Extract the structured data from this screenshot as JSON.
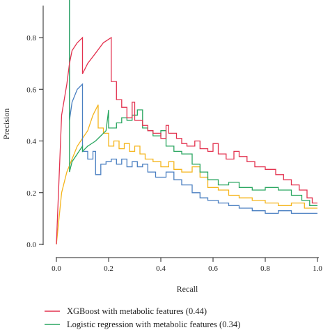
{
  "chart_data": {
    "type": "line",
    "xlabel": "Recall",
    "ylabel": "Precision",
    "xlim": [
      0,
      1
    ],
    "ylim": [
      0,
      0.95
    ],
    "x_ticks": [
      "0.0",
      "0.2",
      "0.4",
      "0.6",
      "0.8",
      "1.0"
    ],
    "y_ticks": [
      "0.0",
      "0.2",
      "0.4",
      "0.6",
      "0.8"
    ],
    "legend_position": "bottom",
    "series": [
      {
        "name": "XGBoost with metabolic features (0.44)",
        "color": "#e3324f",
        "points": [
          [
            0.0,
            0.0
          ],
          [
            0.02,
            0.5
          ],
          [
            0.04,
            0.62
          ],
          [
            0.05,
            0.7
          ],
          [
            0.06,
            0.75
          ],
          [
            0.08,
            0.78
          ],
          [
            0.1,
            0.8
          ],
          [
            0.1,
            0.66
          ],
          [
            0.12,
            0.7
          ],
          [
            0.15,
            0.74
          ],
          [
            0.18,
            0.78
          ],
          [
            0.21,
            0.8
          ],
          [
            0.21,
            0.63
          ],
          [
            0.23,
            0.63
          ],
          [
            0.23,
            0.56
          ],
          [
            0.25,
            0.56
          ],
          [
            0.25,
            0.53
          ],
          [
            0.27,
            0.53
          ],
          [
            0.27,
            0.49
          ],
          [
            0.29,
            0.49
          ],
          [
            0.29,
            0.55
          ],
          [
            0.3,
            0.55
          ],
          [
            0.3,
            0.48
          ],
          [
            0.33,
            0.48
          ],
          [
            0.33,
            0.46
          ],
          [
            0.35,
            0.46
          ],
          [
            0.35,
            0.44
          ],
          [
            0.37,
            0.44
          ],
          [
            0.37,
            0.43
          ],
          [
            0.4,
            0.43
          ],
          [
            0.4,
            0.41
          ],
          [
            0.42,
            0.41
          ],
          [
            0.42,
            0.46
          ],
          [
            0.43,
            0.46
          ],
          [
            0.43,
            0.43
          ],
          [
            0.46,
            0.43
          ],
          [
            0.46,
            0.41
          ],
          [
            0.48,
            0.41
          ],
          [
            0.48,
            0.39
          ],
          [
            0.5,
            0.39
          ],
          [
            0.5,
            0.38
          ],
          [
            0.53,
            0.38
          ],
          [
            0.53,
            0.4
          ],
          [
            0.55,
            0.4
          ],
          [
            0.55,
            0.37
          ],
          [
            0.58,
            0.37
          ],
          [
            0.58,
            0.36
          ],
          [
            0.6,
            0.36
          ],
          [
            0.6,
            0.39
          ],
          [
            0.62,
            0.39
          ],
          [
            0.62,
            0.35
          ],
          [
            0.65,
            0.35
          ],
          [
            0.65,
            0.33
          ],
          [
            0.68,
            0.33
          ],
          [
            0.68,
            0.36
          ],
          [
            0.7,
            0.36
          ],
          [
            0.7,
            0.34
          ],
          [
            0.73,
            0.34
          ],
          [
            0.73,
            0.32
          ],
          [
            0.76,
            0.32
          ],
          [
            0.76,
            0.3
          ],
          [
            0.8,
            0.3
          ],
          [
            0.8,
            0.29
          ],
          [
            0.84,
            0.29
          ],
          [
            0.84,
            0.27
          ],
          [
            0.87,
            0.27
          ],
          [
            0.87,
            0.25
          ],
          [
            0.9,
            0.25
          ],
          [
            0.9,
            0.23
          ],
          [
            0.93,
            0.23
          ],
          [
            0.93,
            0.21
          ],
          [
            0.96,
            0.21
          ],
          [
            0.96,
            0.18
          ],
          [
            0.98,
            0.18
          ],
          [
            0.98,
            0.16
          ],
          [
            1.0,
            0.16
          ]
        ]
      },
      {
        "name": "Logistic regression with metabolic features (0.34)",
        "color": "#2aa660",
        "points": [
          [
            0.05,
            0.95
          ],
          [
            0.05,
            0.28
          ],
          [
            0.06,
            0.32
          ],
          [
            0.08,
            0.35
          ],
          [
            0.1,
            0.38
          ],
          [
            0.1,
            0.36
          ],
          [
            0.12,
            0.38
          ],
          [
            0.15,
            0.4
          ],
          [
            0.17,
            0.42
          ],
          [
            0.19,
            0.44
          ],
          [
            0.2,
            0.52
          ],
          [
            0.2,
            0.45
          ],
          [
            0.23,
            0.45
          ],
          [
            0.23,
            0.47
          ],
          [
            0.25,
            0.47
          ],
          [
            0.25,
            0.49
          ],
          [
            0.27,
            0.49
          ],
          [
            0.27,
            0.48
          ],
          [
            0.29,
            0.48
          ],
          [
            0.29,
            0.5
          ],
          [
            0.31,
            0.5
          ],
          [
            0.31,
            0.52
          ],
          [
            0.33,
            0.52
          ],
          [
            0.33,
            0.45
          ],
          [
            0.35,
            0.45
          ],
          [
            0.35,
            0.44
          ],
          [
            0.37,
            0.44
          ],
          [
            0.37,
            0.42
          ],
          [
            0.4,
            0.42
          ],
          [
            0.4,
            0.44
          ],
          [
            0.42,
            0.44
          ],
          [
            0.42,
            0.38
          ],
          [
            0.45,
            0.38
          ],
          [
            0.45,
            0.36
          ],
          [
            0.48,
            0.36
          ],
          [
            0.48,
            0.35
          ],
          [
            0.52,
            0.35
          ],
          [
            0.52,
            0.31
          ],
          [
            0.55,
            0.31
          ],
          [
            0.55,
            0.28
          ],
          [
            0.58,
            0.28
          ],
          [
            0.58,
            0.25
          ],
          [
            0.62,
            0.25
          ],
          [
            0.62,
            0.23
          ],
          [
            0.66,
            0.23
          ],
          [
            0.66,
            0.24
          ],
          [
            0.7,
            0.24
          ],
          [
            0.7,
            0.22
          ],
          [
            0.75,
            0.22
          ],
          [
            0.75,
            0.21
          ],
          [
            0.8,
            0.21
          ],
          [
            0.8,
            0.22
          ],
          [
            0.85,
            0.22
          ],
          [
            0.85,
            0.21
          ],
          [
            0.9,
            0.21
          ],
          [
            0.9,
            0.19
          ],
          [
            0.94,
            0.19
          ],
          [
            0.94,
            0.17
          ],
          [
            0.97,
            0.17
          ],
          [
            0.97,
            0.15
          ],
          [
            1.0,
            0.15
          ]
        ]
      }
    ],
    "extra_series": [
      {
        "color": "#f5b51c",
        "points": [
          [
            0.0,
            0.0
          ],
          [
            0.02,
            0.2
          ],
          [
            0.04,
            0.28
          ],
          [
            0.06,
            0.33
          ],
          [
            0.08,
            0.38
          ],
          [
            0.1,
            0.41
          ],
          [
            0.12,
            0.44
          ],
          [
            0.14,
            0.5
          ],
          [
            0.16,
            0.54
          ],
          [
            0.16,
            0.45
          ],
          [
            0.18,
            0.45
          ],
          [
            0.18,
            0.43
          ],
          [
            0.2,
            0.43
          ],
          [
            0.2,
            0.38
          ],
          [
            0.22,
            0.38
          ],
          [
            0.22,
            0.4
          ],
          [
            0.24,
            0.4
          ],
          [
            0.24,
            0.37
          ],
          [
            0.26,
            0.37
          ],
          [
            0.26,
            0.39
          ],
          [
            0.28,
            0.39
          ],
          [
            0.28,
            0.36
          ],
          [
            0.3,
            0.36
          ],
          [
            0.3,
            0.38
          ],
          [
            0.32,
            0.38
          ],
          [
            0.32,
            0.35
          ],
          [
            0.34,
            0.35
          ],
          [
            0.34,
            0.33
          ],
          [
            0.37,
            0.33
          ],
          [
            0.37,
            0.32
          ],
          [
            0.4,
            0.32
          ],
          [
            0.4,
            0.3
          ],
          [
            0.43,
            0.3
          ],
          [
            0.43,
            0.32
          ],
          [
            0.45,
            0.32
          ],
          [
            0.45,
            0.29
          ],
          [
            0.48,
            0.29
          ],
          [
            0.48,
            0.28
          ],
          [
            0.52,
            0.28
          ],
          [
            0.52,
            0.3
          ],
          [
            0.55,
            0.3
          ],
          [
            0.55,
            0.26
          ],
          [
            0.58,
            0.26
          ],
          [
            0.58,
            0.22
          ],
          [
            0.62,
            0.22
          ],
          [
            0.62,
            0.21
          ],
          [
            0.66,
            0.21
          ],
          [
            0.66,
            0.19
          ],
          [
            0.7,
            0.19
          ],
          [
            0.7,
            0.18
          ],
          [
            0.75,
            0.18
          ],
          [
            0.75,
            0.17
          ],
          [
            0.8,
            0.17
          ],
          [
            0.8,
            0.16
          ],
          [
            0.85,
            0.16
          ],
          [
            0.85,
            0.15
          ],
          [
            0.9,
            0.15
          ],
          [
            0.9,
            0.16
          ],
          [
            0.95,
            0.16
          ],
          [
            0.95,
            0.14
          ],
          [
            1.0,
            0.14
          ]
        ]
      },
      {
        "color": "#4a7fc1",
        "points": [
          [
            0.05,
            0.95
          ],
          [
            0.05,
            0.48
          ],
          [
            0.06,
            0.55
          ],
          [
            0.08,
            0.6
          ],
          [
            0.1,
            0.62
          ],
          [
            0.1,
            0.36
          ],
          [
            0.12,
            0.36
          ],
          [
            0.12,
            0.33
          ],
          [
            0.14,
            0.33
          ],
          [
            0.14,
            0.36
          ],
          [
            0.15,
            0.36
          ],
          [
            0.15,
            0.27
          ],
          [
            0.17,
            0.27
          ],
          [
            0.17,
            0.31
          ],
          [
            0.19,
            0.31
          ],
          [
            0.19,
            0.32
          ],
          [
            0.21,
            0.32
          ],
          [
            0.21,
            0.33
          ],
          [
            0.23,
            0.33
          ],
          [
            0.23,
            0.31
          ],
          [
            0.25,
            0.31
          ],
          [
            0.25,
            0.33
          ],
          [
            0.27,
            0.33
          ],
          [
            0.27,
            0.3
          ],
          [
            0.29,
            0.3
          ],
          [
            0.29,
            0.32
          ],
          [
            0.31,
            0.32
          ],
          [
            0.31,
            0.3
          ],
          [
            0.33,
            0.3
          ],
          [
            0.33,
            0.31
          ],
          [
            0.35,
            0.31
          ],
          [
            0.35,
            0.28
          ],
          [
            0.38,
            0.28
          ],
          [
            0.38,
            0.26
          ],
          [
            0.42,
            0.26
          ],
          [
            0.42,
            0.28
          ],
          [
            0.45,
            0.28
          ],
          [
            0.45,
            0.25
          ],
          [
            0.48,
            0.25
          ],
          [
            0.48,
            0.23
          ],
          [
            0.52,
            0.23
          ],
          [
            0.52,
            0.2
          ],
          [
            0.55,
            0.2
          ],
          [
            0.55,
            0.18
          ],
          [
            0.58,
            0.18
          ],
          [
            0.58,
            0.17
          ],
          [
            0.62,
            0.17
          ],
          [
            0.62,
            0.16
          ],
          [
            0.66,
            0.16
          ],
          [
            0.66,
            0.15
          ],
          [
            0.7,
            0.15
          ],
          [
            0.7,
            0.14
          ],
          [
            0.75,
            0.14
          ],
          [
            0.75,
            0.13
          ],
          [
            0.8,
            0.13
          ],
          [
            0.8,
            0.12
          ],
          [
            0.85,
            0.12
          ],
          [
            0.85,
            0.13
          ],
          [
            0.9,
            0.13
          ],
          [
            0.9,
            0.12
          ],
          [
            1.0,
            0.12
          ]
        ]
      }
    ]
  }
}
